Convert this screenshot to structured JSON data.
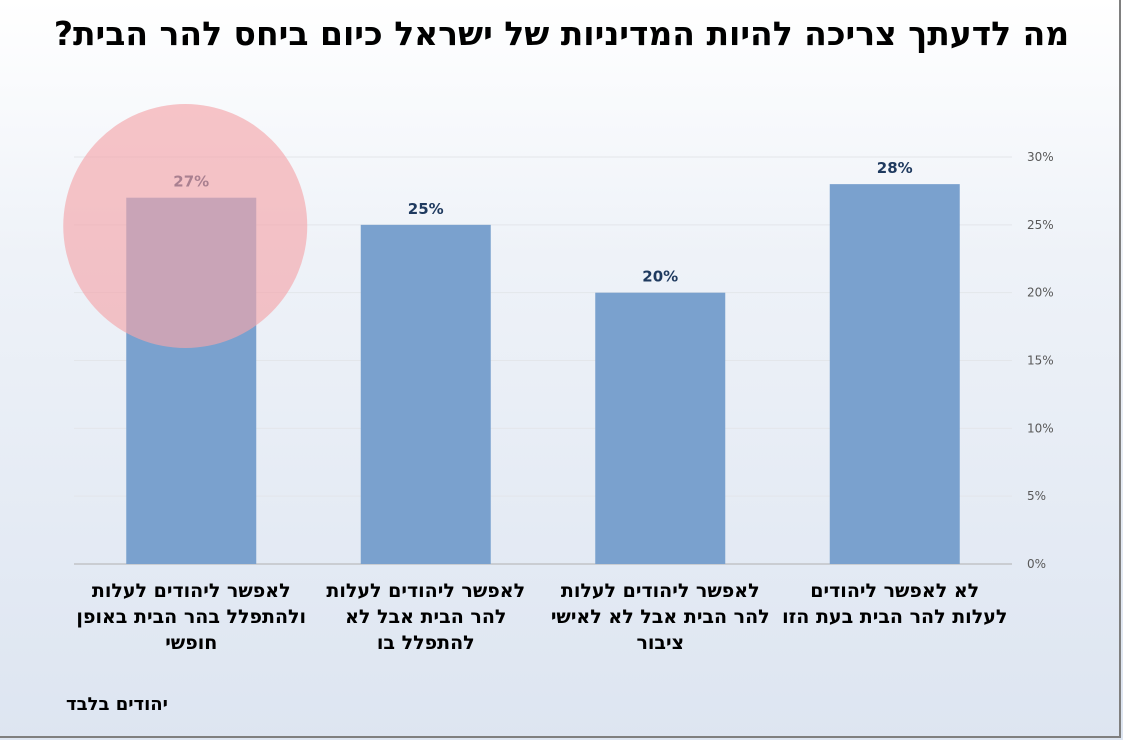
{
  "title": "מה לדעתך צריכה להיות המדיניות של ישראל כיום ביחס להר הבית?",
  "footnote": "יהודים בלבד",
  "colors": {
    "bar": "#7aa1ce",
    "highlight": "#f4a6aa",
    "label": "#1f3a5f"
  },
  "chart_data": {
    "type": "bar",
    "categories": [
      "לא לאפשר ליהודים לעלות להר הבית בעת הזו",
      "לאפשר ליהודים לעלות להר הבית אבל לא לאישי ציבור",
      "לאפשר ליהודים לעלות להר הבית אבל לא להתפלל בו",
      "לאפשר ליהודים לעלות ולהתפלל בהר הבית באופן חופשי"
    ],
    "values": [
      28,
      20,
      25,
      27
    ],
    "value_labels": [
      "28%",
      "20%",
      "25%",
      "27%"
    ],
    "ylim": [
      0,
      30
    ],
    "yticks": [
      "0%",
      "5%",
      "10%",
      "15%",
      "20%",
      "25%",
      "30%"
    ],
    "y_axis_position": "right",
    "grid": true,
    "highlighted_category": "לאפשר ליהודים לעלות ולהתפלל בהר הבית באופן חופשי"
  }
}
